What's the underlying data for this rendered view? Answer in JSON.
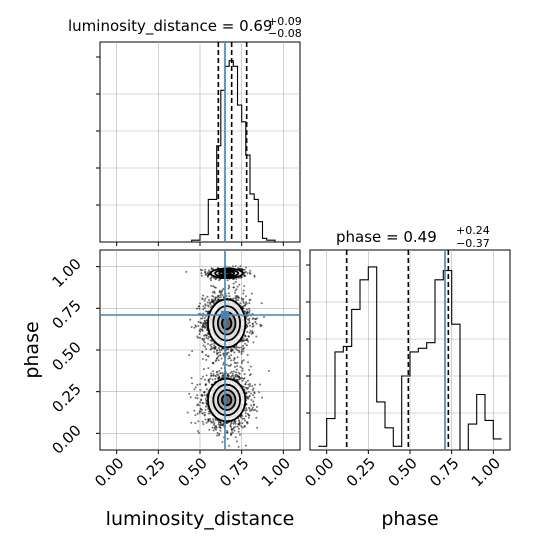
{
  "chart_data": [
    {
      "type": "histogram",
      "panel": "marginal",
      "parameter": "luminosity_distance",
      "title": {
        "label": "luminosity_distance",
        "median": "0.69",
        "plus": "+0.09",
        "minus": "−0.08"
      },
      "bin_edges": [
        0.0,
        0.05,
        0.1,
        0.15,
        0.2,
        0.25,
        0.3,
        0.35,
        0.4,
        0.45,
        0.5,
        0.55,
        0.6,
        0.625,
        0.65,
        0.675,
        0.7,
        0.725,
        0.75,
        0.775,
        0.8,
        0.825,
        0.85,
        0.875,
        0.9,
        0.95,
        1.0,
        1.05
      ],
      "counts": [
        0,
        0,
        0,
        0,
        0,
        0,
        0,
        0,
        0,
        0.01,
        0.04,
        0.23,
        0.52,
        0.82,
        0.95,
        0.98,
        0.95,
        0.74,
        0.65,
        0.47,
        0.26,
        0.23,
        0.11,
        0.02,
        0.01,
        0,
        0
      ],
      "quantiles": [
        0.61,
        0.69,
        0.78
      ],
      "truth": 0.65,
      "xlim": [
        -0.1,
        1.1
      ],
      "grid": true
    },
    {
      "type": "scatter",
      "panel": "joint",
      "xlabel": "luminosity_distance",
      "ylabel": "phase",
      "xlim": [
        -0.1,
        1.1
      ],
      "ylim": [
        -0.1,
        1.1
      ],
      "xticks": [
        "0.00",
        "0.25",
        "0.50",
        "0.75",
        "1.00"
      ],
      "yticks": [
        "0.00",
        "0.25",
        "0.50",
        "0.75",
        "1.00"
      ],
      "modes": [
        {
          "x": 0.66,
          "y": 0.96,
          "sx": 0.06,
          "sy": 0.018,
          "n": 420
        },
        {
          "x": 0.66,
          "y": 0.66,
          "sx": 0.07,
          "sy": 0.09,
          "n": 1500
        },
        {
          "x": 0.66,
          "y": 0.2,
          "sx": 0.07,
          "sy": 0.08,
          "n": 1500
        }
      ],
      "truth": {
        "x": 0.65,
        "y": 0.71
      },
      "grid": true
    },
    {
      "type": "histogram",
      "panel": "marginal",
      "parameter": "phase",
      "title": {
        "label": "phase",
        "median": "0.49",
        "plus": "+0.24",
        "minus": "−0.37"
      },
      "bin_edges": [
        -0.05,
        0.0,
        0.05,
        0.1,
        0.15,
        0.2,
        0.25,
        0.3,
        0.35,
        0.4,
        0.45,
        0.5,
        0.55,
        0.6,
        0.65,
        0.7,
        0.75,
        0.8,
        0.85,
        0.9,
        0.95,
        1.0,
        1.05
      ],
      "counts": [
        0.02,
        0.17,
        0.53,
        0.56,
        0.76,
        0.92,
        0.99,
        0.26,
        0.12,
        0.02,
        0.4,
        0.53,
        0.55,
        0.58,
        0.92,
        0.97,
        0.68,
        0.0,
        0.14,
        0.3,
        0.16,
        0.06
      ],
      "quantiles": [
        0.12,
        0.49,
        0.73
      ],
      "truth": 0.71,
      "xlim": [
        -0.1,
        1.1
      ],
      "xlabel": "phase",
      "xticks": [
        "0.00",
        "0.25",
        "0.50",
        "0.75",
        "1.00"
      ],
      "grid": true
    }
  ],
  "colors": {
    "truth": "#4682b4",
    "hist": "#000000",
    "quantile": "#000000",
    "grid": "#b0b0b0",
    "points": "#000000"
  }
}
